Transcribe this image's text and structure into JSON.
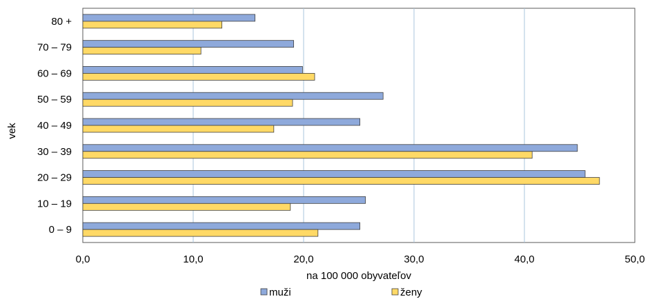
{
  "chart_data": {
    "type": "bar",
    "orientation": "horizontal",
    "categories": [
      "80 +",
      "70 – 79",
      "60 – 69",
      "50 – 59",
      "40 – 49",
      "30 – 39",
      "20 – 29",
      "10 – 19",
      "0 – 9"
    ],
    "series": [
      {
        "name": "muži",
        "color": "#8ea9db",
        "values": [
          15.6,
          19.1,
          19.9,
          27.2,
          25.1,
          44.8,
          45.5,
          25.6,
          25.1
        ]
      },
      {
        "name": "ženy",
        "color": "#ffd966",
        "values": [
          12.6,
          10.7,
          21.0,
          19.0,
          17.3,
          40.7,
          46.8,
          18.8,
          21.3
        ]
      }
    ],
    "xlabel": "na 100 000 obyvateľov",
    "ylabel": "vek",
    "xlim": [
      0,
      50
    ],
    "xticks": [
      "0,0",
      "10,0",
      "20,0",
      "30,0",
      "40,0",
      "50,0"
    ],
    "grid": "vertical",
    "legend_position": "bottom"
  }
}
